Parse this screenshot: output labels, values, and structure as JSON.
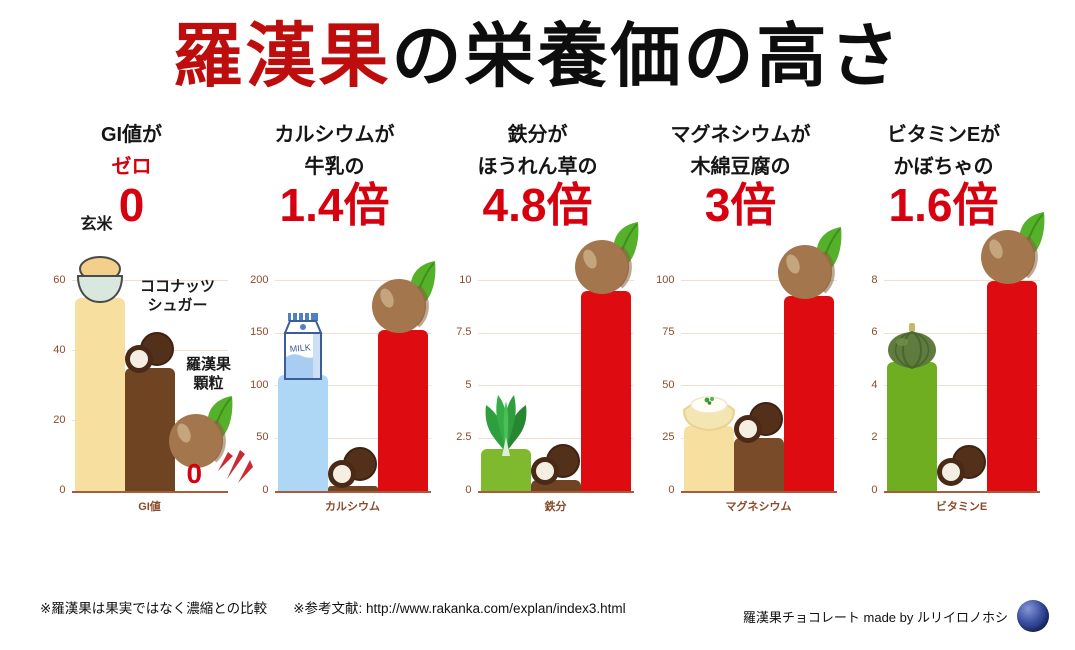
{
  "title": {
    "highlight": "羅漢果",
    "rest": "の栄養価の高さ"
  },
  "footer": {
    "note_comparison": "※羅漢果は果実ではなく濃縮との比較",
    "note_reference": "※参考文献: http://www.rakanka.com/explan/index3.html",
    "credit": "羅漢果チョコレート made by ルリイロノホシ"
  },
  "colors": {
    "title_red": "#BE0D0D",
    "accent_red": "#D7000F",
    "bar_red": "#DE0B10",
    "axis_brown": "#A65B3C",
    "tick_brown": "#8B4B2B",
    "gridline": "#F2DFD4"
  },
  "chart_data": [
    {
      "type": "bar",
      "header": {
        "line1": "GI値が",
        "line2": "ゼロ",
        "line2_red": true,
        "multiplier": "0"
      },
      "xlabel": "GI値",
      "ylim": [
        0,
        60
      ],
      "yticks": [
        0,
        20,
        40,
        60
      ],
      "bars": [
        {
          "name": "玄米",
          "value": 55,
          "color": "#F7DF9F",
          "icon": "rice-bowl",
          "label": "玄米"
        },
        {
          "name": "ココナッツシュガー",
          "value": 35,
          "color": "#6E4423",
          "icon": "coconut",
          "label": "ココナッツ\nシュガー"
        },
        {
          "name": "羅漢果顆粒",
          "value": 0,
          "color": "#DE0B10",
          "icon": "monkfruit",
          "label": "羅漢果\n顆粒",
          "zero_mark": "0"
        }
      ]
    },
    {
      "type": "bar",
      "header": {
        "line1": "カルシウムが",
        "line2": "牛乳の",
        "line2_red": false,
        "multiplier": "1.4倍"
      },
      "xlabel": "カルシウム",
      "ylim": [
        0,
        200
      ],
      "yticks": [
        0,
        50,
        100,
        150,
        200
      ],
      "bars": [
        {
          "name": "牛乳",
          "value": 110,
          "color": "#AED7F5",
          "icon": "milk"
        },
        {
          "name": "ココナッツシュガー",
          "value": 5,
          "color": "#6E4423",
          "icon": "coconut"
        },
        {
          "name": "羅漢果",
          "value": 153,
          "color": "#DE0B10",
          "icon": "monkfruit"
        }
      ]
    },
    {
      "type": "bar",
      "header": {
        "line1": "鉄分が",
        "line2": "ほうれん草の",
        "line2_red": false,
        "multiplier": "4.8倍"
      },
      "xlabel": "鉄分",
      "ylim": [
        0,
        10
      ],
      "yticks": [
        0,
        2.5,
        5,
        7.5,
        10
      ],
      "bars": [
        {
          "name": "ほうれん草",
          "value": 2,
          "color": "#7FB92E",
          "icon": "spinach"
        },
        {
          "name": "ココナッツシュガー",
          "value": 0.5,
          "color": "#6E4423",
          "icon": "coconut"
        },
        {
          "name": "羅漢果",
          "value": 9.5,
          "color": "#DE0B10",
          "icon": "monkfruit"
        }
      ]
    },
    {
      "type": "bar",
      "header": {
        "line1": "マグネシウムが",
        "line2": "木綿豆腐の",
        "line2_red": false,
        "multiplier": "3倍"
      },
      "xlabel": "マグネシウム",
      "ylim": [
        0,
        100
      ],
      "yticks": [
        0,
        25,
        50,
        75,
        100
      ],
      "bars": [
        {
          "name": "木綿豆腐",
          "value": 31,
          "color": "#F7DF9F",
          "icon": "tofu"
        },
        {
          "name": "ココナッツシュガー",
          "value": 25,
          "color": "#7A4B28",
          "icon": "coconut"
        },
        {
          "name": "羅漢果",
          "value": 93,
          "color": "#DE0B10",
          "icon": "monkfruit"
        }
      ]
    },
    {
      "type": "bar",
      "header": {
        "line1": "ビタミンEが",
        "line2": "かぼちゃの",
        "line2_red": false,
        "multiplier": "1.6倍"
      },
      "xlabel": "ビタミンE",
      "ylim": [
        0,
        8
      ],
      "yticks": [
        0,
        2,
        4,
        6,
        8
      ],
      "bars": [
        {
          "name": "かぼちゃ",
          "value": 4.9,
          "color": "#6FAE21",
          "icon": "pumpkin"
        },
        {
          "name": "ココナッツシュガー",
          "value": 0,
          "color": "#6E4423",
          "icon": "coconut"
        },
        {
          "name": "羅漢果",
          "value": 8,
          "color": "#DE0B10",
          "icon": "monkfruit"
        }
      ]
    }
  ]
}
